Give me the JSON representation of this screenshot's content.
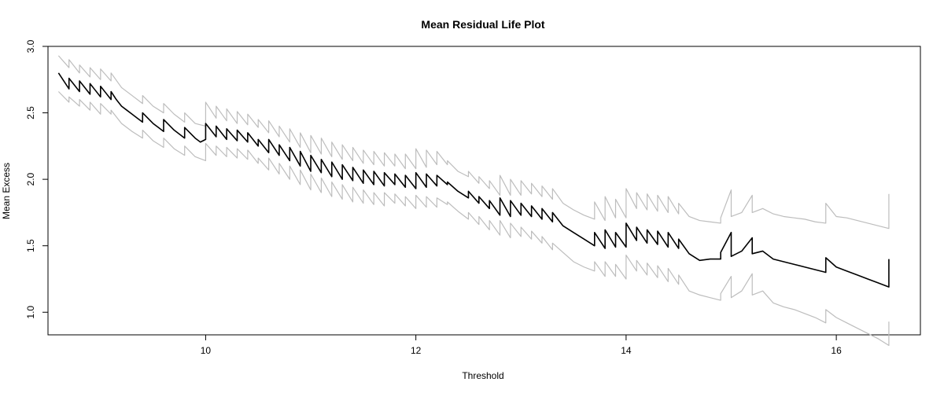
{
  "chart_data": {
    "type": "line",
    "title": "Mean Residual Life Plot",
    "xlabel": "Threshold",
    "ylabel": "Mean Excess",
    "xlim": [
      8.5,
      16.8
    ],
    "ylim": [
      0.83,
      3.0
    ],
    "x_ticks": [
      10,
      12,
      14,
      16
    ],
    "y_ticks": [
      1.0,
      1.5,
      2.0,
      2.5,
      3.0
    ],
    "x_tick_labels": [
      "10",
      "12",
      "14",
      "16"
    ],
    "y_tick_labels": [
      "1.0",
      "1.5",
      "2.0",
      "2.5",
      "3.0"
    ],
    "grid": false,
    "legend": "none",
    "colors": {
      "mean": "#000000",
      "ci": "#bdbdbd",
      "frame": "#000000"
    },
    "series": [
      {
        "x": [
          8.6,
          8.65,
          8.7,
          8.7,
          8.75,
          8.8,
          8.8,
          8.85,
          8.9,
          8.9,
          8.95,
          9.0,
          9.0,
          9.05,
          9.1,
          9.1,
          9.15,
          9.2,
          9.25,
          9.3,
          9.35,
          9.4,
          9.4,
          9.45,
          9.5,
          9.55,
          9.6,
          9.6,
          9.65,
          9.7,
          9.75,
          9.8,
          9.8,
          9.85,
          9.9,
          9.95,
          10.0,
          10.0,
          10.1,
          10.1,
          10.2,
          10.2,
          10.3,
          10.3,
          10.4,
          10.4,
          10.5,
          10.5,
          10.6,
          10.6,
          10.7,
          10.7,
          10.8,
          10.8,
          10.9,
          10.9,
          11.0,
          11.0,
          11.1,
          11.1,
          11.2,
          11.2,
          11.3,
          11.3,
          11.4,
          11.4,
          11.5,
          11.5,
          11.6,
          11.6,
          11.7,
          11.7,
          11.8,
          11.8,
          11.9,
          11.9,
          12.0,
          12.0,
          12.1,
          12.1,
          12.2,
          12.2,
          12.3,
          12.3,
          12.4,
          12.5,
          12.5,
          12.6,
          12.6,
          12.7,
          12.7,
          12.8,
          12.8,
          12.9,
          12.9,
          13.0,
          13.0,
          13.1,
          13.1,
          13.2,
          13.2,
          13.3,
          13.3,
          13.4,
          13.5,
          13.6,
          13.7,
          13.7,
          13.8,
          13.8,
          13.9,
          13.9,
          14.0,
          14.0,
          14.1,
          14.1,
          14.2,
          14.2,
          14.3,
          14.3,
          14.4,
          14.4,
          14.5,
          14.5,
          14.6,
          14.7,
          14.8,
          14.9,
          14.9,
          15.0,
          15.0,
          15.1,
          15.2,
          15.2,
          15.3,
          15.4,
          15.5,
          15.6,
          15.7,
          15.8,
          15.9,
          15.9,
          16.0,
          16.1,
          16.2,
          16.3,
          16.4,
          16.5,
          16.5
        ],
        "y": [
          2.8,
          2.74,
          2.68,
          2.76,
          2.71,
          2.66,
          2.74,
          2.69,
          2.64,
          2.72,
          2.67,
          2.62,
          2.7,
          2.65,
          2.6,
          2.66,
          2.6,
          2.55,
          2.52,
          2.49,
          2.46,
          2.43,
          2.5,
          2.46,
          2.42,
          2.39,
          2.36,
          2.45,
          2.41,
          2.37,
          2.34,
          2.31,
          2.39,
          2.35,
          2.31,
          2.28,
          2.3,
          2.42,
          2.32,
          2.4,
          2.3,
          2.38,
          2.29,
          2.37,
          2.28,
          2.35,
          2.25,
          2.3,
          2.2,
          2.3,
          2.18,
          2.26,
          2.14,
          2.24,
          2.1,
          2.21,
          2.06,
          2.18,
          2.05,
          2.15,
          2.02,
          2.13,
          2.0,
          2.11,
          1.99,
          2.09,
          1.97,
          2.07,
          1.96,
          2.06,
          1.95,
          2.05,
          1.96,
          2.04,
          1.94,
          2.03,
          1.93,
          2.05,
          1.94,
          2.04,
          1.95,
          2.03,
          1.96,
          1.98,
          1.91,
          1.86,
          1.91,
          1.82,
          1.87,
          1.78,
          1.84,
          1.73,
          1.86,
          1.72,
          1.84,
          1.73,
          1.82,
          1.72,
          1.8,
          1.7,
          1.78,
          1.68,
          1.75,
          1.65,
          1.6,
          1.55,
          1.5,
          1.6,
          1.48,
          1.62,
          1.49,
          1.6,
          1.49,
          1.67,
          1.54,
          1.64,
          1.52,
          1.62,
          1.51,
          1.61,
          1.49,
          1.6,
          1.48,
          1.55,
          1.44,
          1.39,
          1.4,
          1.4,
          1.45,
          1.6,
          1.42,
          1.46,
          1.56,
          1.44,
          1.46,
          1.4,
          1.38,
          1.36,
          1.34,
          1.32,
          1.3,
          1.41,
          1.34,
          1.31,
          1.28,
          1.25,
          1.22,
          1.19,
          1.4
        ]
      },
      {
        "x": [
          8.6,
          8.7,
          8.7,
          8.8,
          8.8,
          8.9,
          8.9,
          9.0,
          9.0,
          9.1,
          9.1,
          9.2,
          9.3,
          9.4,
          9.4,
          9.5,
          9.6,
          9.6,
          9.7,
          9.8,
          9.8,
          9.9,
          10.0,
          10.0,
          10.1,
          10.1,
          10.2,
          10.2,
          10.3,
          10.3,
          10.4,
          10.4,
          10.5,
          10.5,
          10.6,
          10.6,
          10.7,
          10.7,
          10.8,
          10.8,
          10.9,
          10.9,
          11.0,
          11.0,
          11.1,
          11.1,
          11.2,
          11.2,
          11.3,
          11.3,
          11.4,
          11.4,
          11.5,
          11.5,
          11.6,
          11.6,
          11.7,
          11.7,
          11.8,
          11.8,
          11.9,
          11.9,
          12.0,
          12.0,
          12.1,
          12.1,
          12.2,
          12.2,
          12.3,
          12.3,
          12.4,
          12.5,
          12.5,
          12.6,
          12.6,
          12.7,
          12.7,
          12.8,
          12.8,
          12.9,
          12.9,
          13.0,
          13.0,
          13.1,
          13.1,
          13.2,
          13.2,
          13.3,
          13.3,
          13.4,
          13.5,
          13.6,
          13.7,
          13.7,
          13.8,
          13.8,
          13.9,
          13.9,
          14.0,
          14.0,
          14.1,
          14.1,
          14.2,
          14.2,
          14.3,
          14.3,
          14.4,
          14.4,
          14.5,
          14.5,
          14.6,
          14.7,
          14.8,
          14.9,
          14.9,
          15.0,
          15.0,
          15.1,
          15.2,
          15.2,
          15.3,
          15.4,
          15.5,
          15.6,
          15.7,
          15.8,
          15.9,
          15.9,
          16.0,
          16.1,
          16.2,
          16.3,
          16.4,
          16.5,
          16.5
        ],
        "y": [
          2.93,
          2.84,
          2.9,
          2.8,
          2.86,
          2.77,
          2.84,
          2.75,
          2.83,
          2.74,
          2.8,
          2.69,
          2.63,
          2.57,
          2.63,
          2.55,
          2.5,
          2.57,
          2.49,
          2.43,
          2.5,
          2.42,
          2.4,
          2.58,
          2.46,
          2.55,
          2.44,
          2.53,
          2.42,
          2.51,
          2.41,
          2.49,
          2.39,
          2.45,
          2.35,
          2.44,
          2.32,
          2.4,
          2.28,
          2.38,
          2.24,
          2.35,
          2.2,
          2.33,
          2.19,
          2.31,
          2.17,
          2.28,
          2.15,
          2.26,
          2.14,
          2.24,
          2.12,
          2.22,
          2.11,
          2.21,
          2.1,
          2.2,
          2.1,
          2.19,
          2.08,
          2.19,
          2.08,
          2.23,
          2.09,
          2.22,
          2.11,
          2.21,
          2.11,
          2.14,
          2.06,
          2.02,
          2.06,
          1.97,
          2.02,
          1.93,
          1.99,
          1.88,
          2.03,
          1.88,
          2.0,
          1.88,
          1.99,
          1.89,
          1.97,
          1.87,
          1.95,
          1.85,
          1.93,
          1.82,
          1.77,
          1.73,
          1.7,
          1.83,
          1.69,
          1.87,
          1.71,
          1.85,
          1.71,
          1.93,
          1.78,
          1.9,
          1.77,
          1.89,
          1.76,
          1.88,
          1.75,
          1.87,
          1.74,
          1.82,
          1.72,
          1.69,
          1.68,
          1.67,
          1.71,
          1.92,
          1.72,
          1.75,
          1.88,
          1.75,
          1.78,
          1.74,
          1.72,
          1.71,
          1.7,
          1.68,
          1.67,
          1.82,
          1.72,
          1.71,
          1.69,
          1.67,
          1.65,
          1.63,
          1.89
        ]
      },
      {
        "x": [
          8.6,
          8.7,
          8.7,
          8.8,
          8.8,
          8.9,
          8.9,
          9.0,
          9.0,
          9.1,
          9.1,
          9.2,
          9.3,
          9.4,
          9.4,
          9.5,
          9.6,
          9.6,
          9.7,
          9.8,
          9.8,
          9.9,
          10.0,
          10.0,
          10.1,
          10.1,
          10.2,
          10.2,
          10.3,
          10.3,
          10.4,
          10.4,
          10.5,
          10.5,
          10.6,
          10.6,
          10.7,
          10.7,
          10.8,
          10.8,
          10.9,
          10.9,
          11.0,
          11.0,
          11.1,
          11.1,
          11.2,
          11.2,
          11.3,
          11.3,
          11.4,
          11.4,
          11.5,
          11.5,
          11.6,
          11.6,
          11.7,
          11.7,
          11.8,
          11.8,
          11.9,
          11.9,
          12.0,
          12.0,
          12.1,
          12.1,
          12.2,
          12.2,
          12.3,
          12.3,
          12.4,
          12.5,
          12.5,
          12.6,
          12.6,
          12.7,
          12.7,
          12.8,
          12.8,
          12.9,
          12.9,
          13.0,
          13.0,
          13.1,
          13.1,
          13.2,
          13.2,
          13.3,
          13.3,
          13.4,
          13.5,
          13.6,
          13.7,
          13.7,
          13.8,
          13.8,
          13.9,
          13.9,
          14.0,
          14.0,
          14.1,
          14.1,
          14.2,
          14.2,
          14.3,
          14.3,
          14.4,
          14.4,
          14.5,
          14.5,
          14.6,
          14.7,
          14.8,
          14.9,
          14.9,
          15.0,
          15.0,
          15.1,
          15.2,
          15.2,
          15.3,
          15.4,
          15.5,
          15.6,
          15.7,
          15.8,
          15.9,
          15.9,
          16.0,
          16.1,
          16.2,
          16.3,
          16.4,
          16.5,
          16.5
        ],
        "y": [
          2.66,
          2.58,
          2.62,
          2.55,
          2.6,
          2.52,
          2.58,
          2.49,
          2.57,
          2.49,
          2.52,
          2.42,
          2.36,
          2.31,
          2.37,
          2.29,
          2.24,
          2.31,
          2.23,
          2.18,
          2.25,
          2.17,
          2.14,
          2.27,
          2.18,
          2.25,
          2.17,
          2.24,
          2.16,
          2.23,
          2.15,
          2.22,
          2.12,
          2.16,
          2.07,
          2.16,
          2.04,
          2.12,
          2.0,
          2.1,
          1.96,
          2.07,
          1.92,
          2.04,
          1.9,
          2.01,
          1.87,
          1.98,
          1.85,
          1.96,
          1.83,
          1.94,
          1.82,
          1.92,
          1.81,
          1.9,
          1.8,
          1.9,
          1.82,
          1.89,
          1.8,
          1.87,
          1.78,
          1.88,
          1.79,
          1.87,
          1.79,
          1.86,
          1.81,
          1.83,
          1.76,
          1.7,
          1.75,
          1.66,
          1.72,
          1.62,
          1.69,
          1.58,
          1.69,
          1.56,
          1.67,
          1.57,
          1.64,
          1.55,
          1.61,
          1.52,
          1.57,
          1.47,
          1.52,
          1.45,
          1.38,
          1.34,
          1.31,
          1.38,
          1.27,
          1.38,
          1.27,
          1.36,
          1.25,
          1.43,
          1.31,
          1.39,
          1.28,
          1.37,
          1.26,
          1.35,
          1.23,
          1.33,
          1.21,
          1.28,
          1.16,
          1.13,
          1.11,
          1.09,
          1.14,
          1.27,
          1.11,
          1.16,
          1.29,
          1.13,
          1.16,
          1.07,
          1.04,
          1.02,
          0.99,
          0.96,
          0.92,
          1.02,
          0.96,
          0.92,
          0.88,
          0.84,
          0.8,
          0.75,
          0.93
        ]
      }
    ]
  }
}
